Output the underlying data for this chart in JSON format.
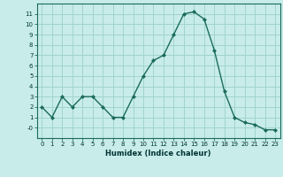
{
  "x": [
    0,
    1,
    2,
    3,
    4,
    5,
    6,
    7,
    8,
    9,
    10,
    11,
    12,
    13,
    14,
    15,
    16,
    17,
    18,
    19,
    20,
    21,
    22,
    23
  ],
  "y": [
    2,
    1,
    3,
    2,
    3,
    3,
    2,
    1,
    1,
    3,
    5,
    6.5,
    7,
    9,
    11,
    11.2,
    10.5,
    7.5,
    3.5,
    1,
    0.5,
    0.3,
    -0.2,
    -0.2
  ],
  "line_color": "#1a6b5a",
  "marker_color": "#1a6b5a",
  "bg_color": "#c8ecea",
  "grid_color": "#a0d4d0",
  "xlabel": "Humidex (Indice chaleur)",
  "xlim": [
    -0.5,
    23.5
  ],
  "ylim": [
    -1.0,
    12.0
  ],
  "yticks": [
    0,
    1,
    2,
    3,
    4,
    5,
    6,
    7,
    8,
    9,
    10,
    11
  ],
  "ytick_labels": [
    "-0",
    "1",
    "2",
    "3",
    "4",
    "5",
    "6",
    "7",
    "8",
    "9",
    "10",
    "11"
  ],
  "xticks": [
    0,
    1,
    2,
    3,
    4,
    5,
    6,
    7,
    8,
    9,
    10,
    11,
    12,
    13,
    14,
    15,
    16,
    17,
    18,
    19,
    20,
    21,
    22,
    23
  ]
}
